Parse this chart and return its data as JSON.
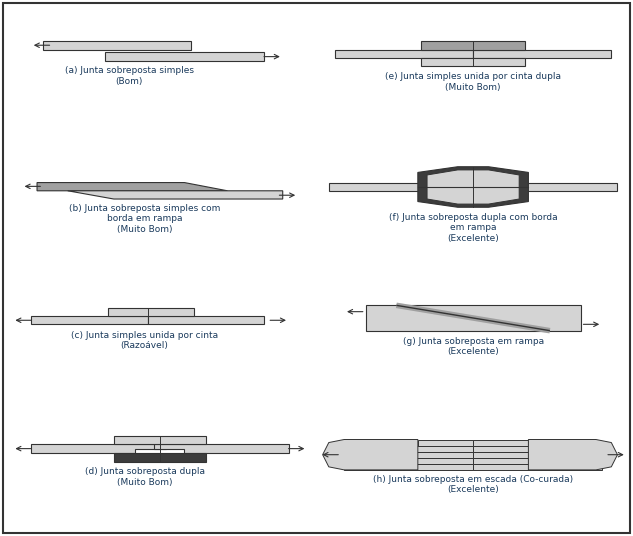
{
  "background_color": "#ffffff",
  "text_color": "#1a3a5c",
  "labels": {
    "a": "(a) Junta sobreposta simples\n(Bom)",
    "b": "(b) Junta sobreposta simples com\nborda em rampa\n(Muito Bom)",
    "c": "(c) Junta simples unida por cinta\n(Razoável)",
    "d": "(d) Junta sobreposta dupla\n(Muito Bom)",
    "e": "(e) Junta simples unida por cinta dupla\n(Muito Bom)",
    "f": "(f) Junta sobreposta dupla com borda\nem rampa\n(Excelente)",
    "g": "(g) Junta sobreposta em rampa\n(Excelente)",
    "h": "(h) Junta sobreposta em escada (Co-curada)\n(Excelente)"
  },
  "lc": "#d4d4d4",
  "mc": "#a0a0a0",
  "dc": "#3c3c3c",
  "bc": "#333333"
}
